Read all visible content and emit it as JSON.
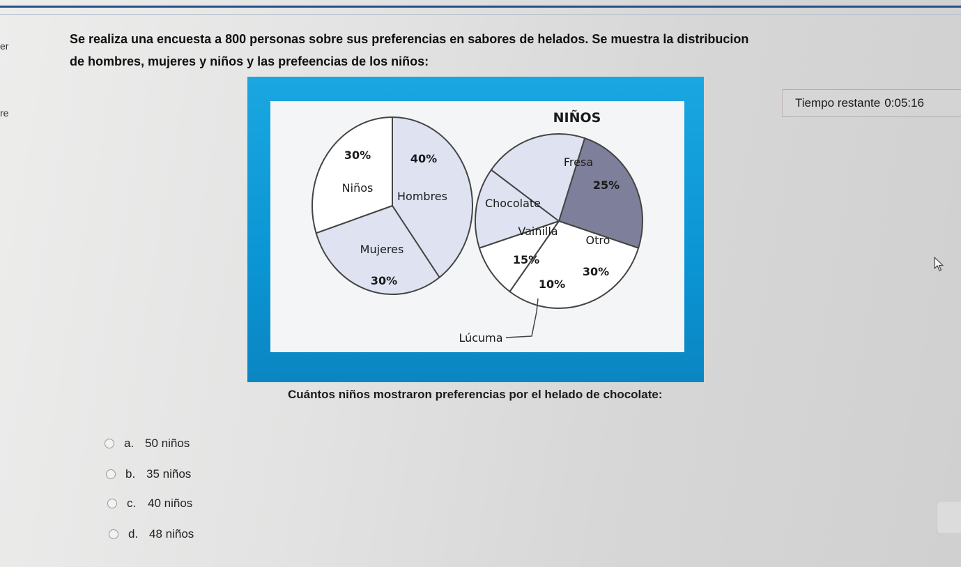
{
  "page": {
    "edge_labels": [
      "er",
      "re"
    ],
    "question_line1": "Se realiza una encuesta a 800 personas sobre sus preferencias en sabores de helados. Se muestra la distribucion",
    "question_line2": "de hombres, mujeres y niños y las prefeencias de los niños:",
    "timer_label": "Tiempo restante",
    "timer_value": "0:05:16",
    "subquestion": "Cuántos niños mostraron preferencias por el helado de chocolate:",
    "options": [
      {
        "letter": "a.",
        "text": "50 niños"
      },
      {
        "letter": "b.",
        "text": "35 niños"
      },
      {
        "letter": "c.",
        "text": "40 niños"
      },
      {
        "letter": "d.",
        "text": "48 niños"
      }
    ],
    "cursor_icon": "mouse-pointer-icon"
  },
  "chart_data": [
    {
      "type": "pie",
      "title": "",
      "slices": [
        {
          "label": "Hombres",
          "value": 40,
          "value_label": "40%"
        },
        {
          "label": "Mujeres",
          "value": 30,
          "value_label": "30%"
        },
        {
          "label": "Niños",
          "value": 30,
          "value_label": "30%"
        }
      ],
      "colors": {
        "Hombres": "#dfe3f1",
        "Mujeres": "#dfe3f1",
        "Niños": "#ffffff"
      }
    },
    {
      "type": "pie",
      "title": "NIÑOS",
      "slices": [
        {
          "label": "Fresa",
          "value": 25,
          "value_label": "25%"
        },
        {
          "label": "Otro",
          "value": 30,
          "value_label": "30%"
        },
        {
          "label": "Lúcuma",
          "value": 10,
          "value_label": "10%"
        },
        {
          "label": "Vainilla",
          "value": 15,
          "value_label": "15%"
        },
        {
          "label": "Chocolate",
          "value": 20,
          "value_label": ""
        }
      ],
      "colors": {
        "Fresa": "#7e7f9a",
        "Otro": "#ffffff",
        "Lúcuma": "#ffffff",
        "Vainilla": "#dfe3f1",
        "Chocolate": "#dfe3f1"
      }
    }
  ]
}
